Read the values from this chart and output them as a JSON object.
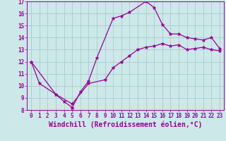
{
  "xlabel": "Windchill (Refroidissement éolien,°C)",
  "x_series1": [
    0,
    1,
    3,
    4,
    5,
    5,
    6,
    7,
    8,
    10,
    11,
    12,
    14,
    15,
    16,
    17,
    18,
    19,
    20,
    21,
    22,
    23
  ],
  "y_series1": [
    12,
    10.2,
    9.3,
    8.7,
    8.2,
    8.2,
    9.5,
    10.4,
    12.3,
    15.6,
    15.8,
    16.1,
    17.0,
    16.5,
    15.1,
    14.3,
    14.3,
    14.0,
    13.9,
    13.8,
    14.0,
    13.1
  ],
  "x_series2": [
    0,
    3,
    5,
    7,
    9,
    10,
    11,
    12,
    13,
    14,
    15,
    16,
    17,
    18,
    19,
    20,
    21,
    22,
    23
  ],
  "y_series2": [
    12,
    9.3,
    8.5,
    10.2,
    10.5,
    11.5,
    12.0,
    12.5,
    13.0,
    13.2,
    13.3,
    13.5,
    13.3,
    13.4,
    13.0,
    13.1,
    13.2,
    13.0,
    12.9
  ],
  "line_color": "#990099",
  "marker": "*",
  "markersize": 3.5,
  "linewidth": 0.9,
  "bg_color": "#cce8e8",
  "grid_color": "#aacccc",
  "xlim": [
    -0.5,
    23.5
  ],
  "ylim": [
    8,
    17
  ],
  "xticks": [
    0,
    1,
    2,
    3,
    4,
    5,
    6,
    7,
    8,
    9,
    10,
    11,
    12,
    13,
    14,
    15,
    16,
    17,
    18,
    19,
    20,
    21,
    22,
    23
  ],
  "yticks": [
    8,
    9,
    10,
    11,
    12,
    13,
    14,
    15,
    16,
    17
  ],
  "tick_fontsize": 5.5,
  "xlabel_fontsize": 7.0
}
